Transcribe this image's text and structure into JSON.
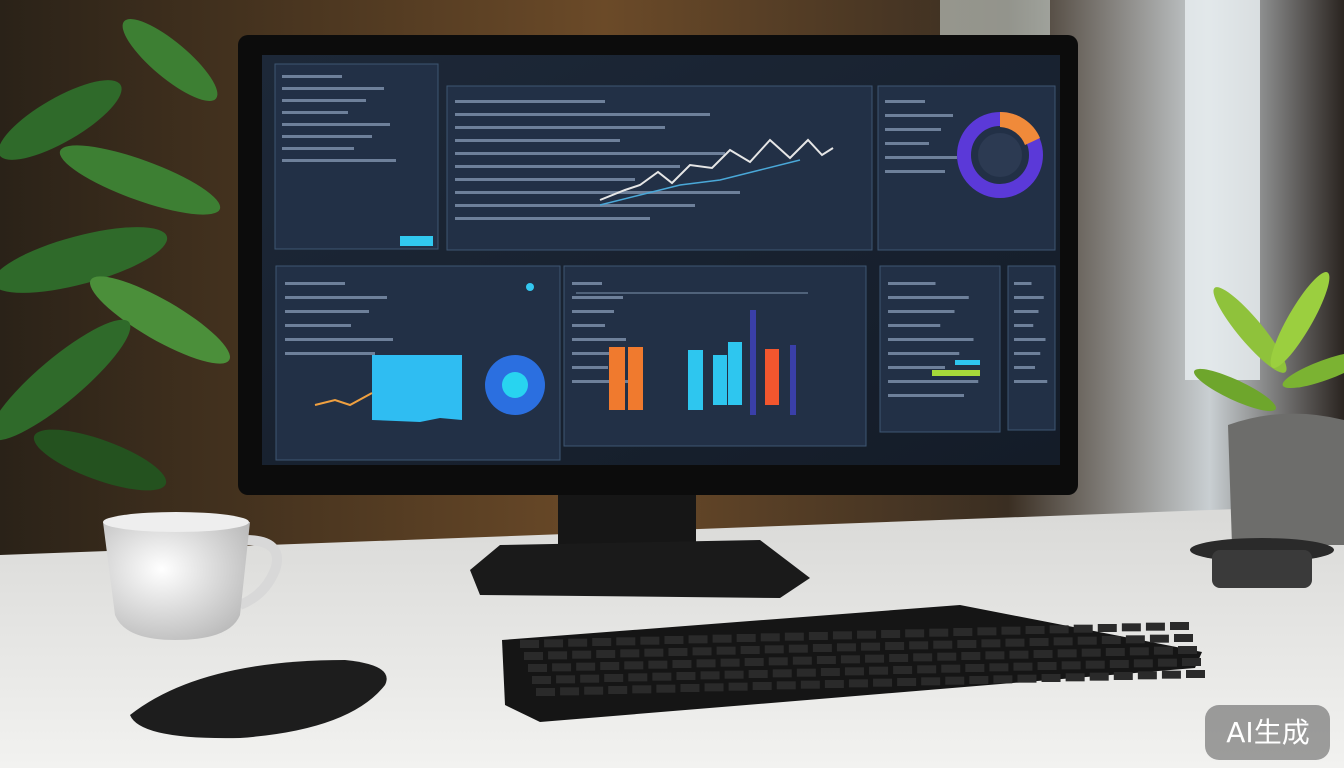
{
  "watermark": "AI生成"
}
